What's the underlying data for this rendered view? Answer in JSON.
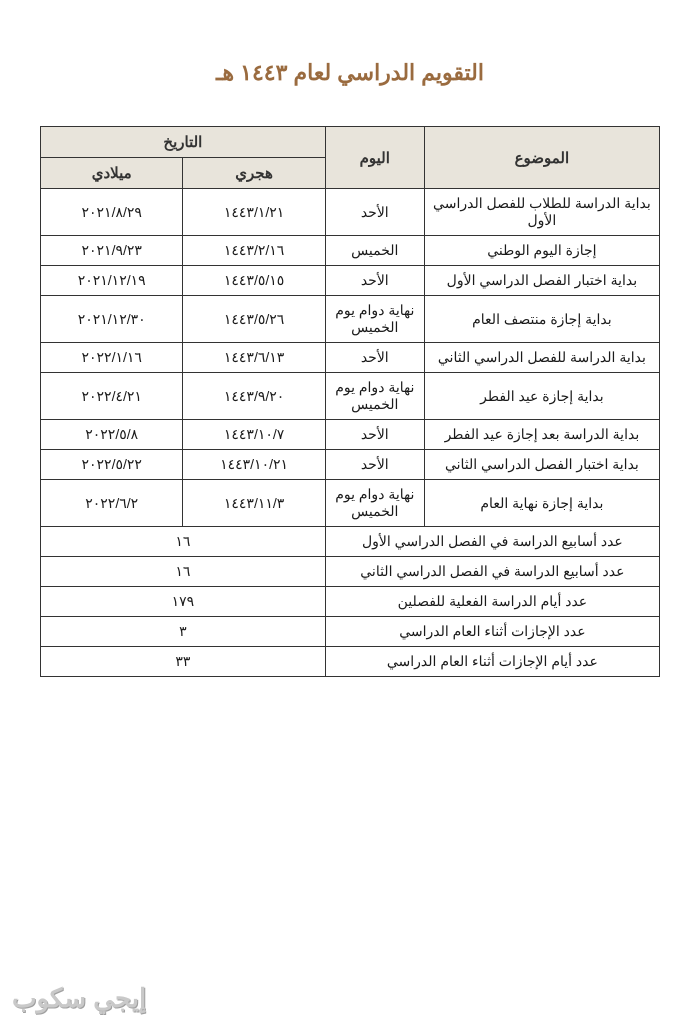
{
  "title": "التقويم الدراسي لعام ١٤٤٣ هـ",
  "headers": {
    "subject": "الموضوع",
    "day": "اليوم",
    "date_group": "التاريخ",
    "hijri": "هجري",
    "gregorian": "ميلادي"
  },
  "rows": [
    {
      "subject": "بداية الدراسة للطلاب للفصل الدراسي الأول",
      "day": "الأحد",
      "hijri": "١٤٤٣/١/٢١",
      "greg": "٢٠٢١/٨/٢٩"
    },
    {
      "subject": "إجازة اليوم الوطني",
      "day": "الخميس",
      "hijri": "١٤٤٣/٢/١٦",
      "greg": "٢٠٢١/٩/٢٣"
    },
    {
      "subject": "بداية اختبار الفصل الدراسي الأول",
      "day": "الأحد",
      "hijri": "١٤٤٣/٥/١٥",
      "greg": "٢٠٢١/١٢/١٩"
    },
    {
      "subject": "بداية إجازة منتصف العام",
      "day": "نهاية دوام يوم الخميس",
      "hijri": "١٤٤٣/٥/٢٦",
      "greg": "٢٠٢١/١٢/٣٠"
    },
    {
      "subject": "بداية الدراسة للفصل الدراسي الثاني",
      "day": "الأحد",
      "hijri": "١٤٤٣/٦/١٣",
      "greg": "٢٠٢٢/١/١٦"
    },
    {
      "subject": "بداية إجازة عيد الفطر",
      "day": "نهاية دوام يوم الخميس",
      "hijri": "١٤٤٣/٩/٢٠",
      "greg": "٢٠٢٢/٤/٢١"
    },
    {
      "subject": "بداية الدراسة بعد إجازة عيد الفطر",
      "day": "الأحد",
      "hijri": "١٤٤٣/١٠/٧",
      "greg": "٢٠٢٢/٥/٨"
    },
    {
      "subject": "بداية اختبار الفصل الدراسي الثاني",
      "day": "الأحد",
      "hijri": "١٤٤٣/١٠/٢١",
      "greg": "٢٠٢٢/٥/٢٢"
    },
    {
      "subject": "بداية إجازة نهاية العام",
      "day": "نهاية دوام يوم الخميس",
      "hijri": "١٤٤٣/١١/٣",
      "greg": "٢٠٢٢/٦/٢"
    }
  ],
  "summary": [
    {
      "label": "عدد أسابيع الدراسة في الفصل الدراسي الأول",
      "value": "١٦"
    },
    {
      "label": "عدد أسابيع الدراسة في الفصل الدراسي الثاني",
      "value": "١٦"
    },
    {
      "label": "عدد أيام الدراسة الفعلية للفصلين",
      "value": "١٧٩"
    },
    {
      "label": "عدد الإجازات أثناء العام الدراسي",
      "value": "٣"
    },
    {
      "label": "عدد أيام الإجازات أثناء العام الدراسي",
      "value": "٣٣"
    }
  ],
  "watermark": "إيجي سكوب",
  "styling": {
    "title_color": "#9a6b3f",
    "title_fontsize": 22,
    "header_bg": "#e8e4db",
    "border_color": "#333333",
    "cell_fontsize": 14,
    "header_fontsize": 15,
    "page_bg": "#ffffff",
    "watermark_color": "#c9c9c9",
    "watermark_fontsize": 26,
    "col_widths_pct": {
      "subject": 38,
      "day": 16,
      "hijri": 23,
      "greg": 23
    }
  }
}
